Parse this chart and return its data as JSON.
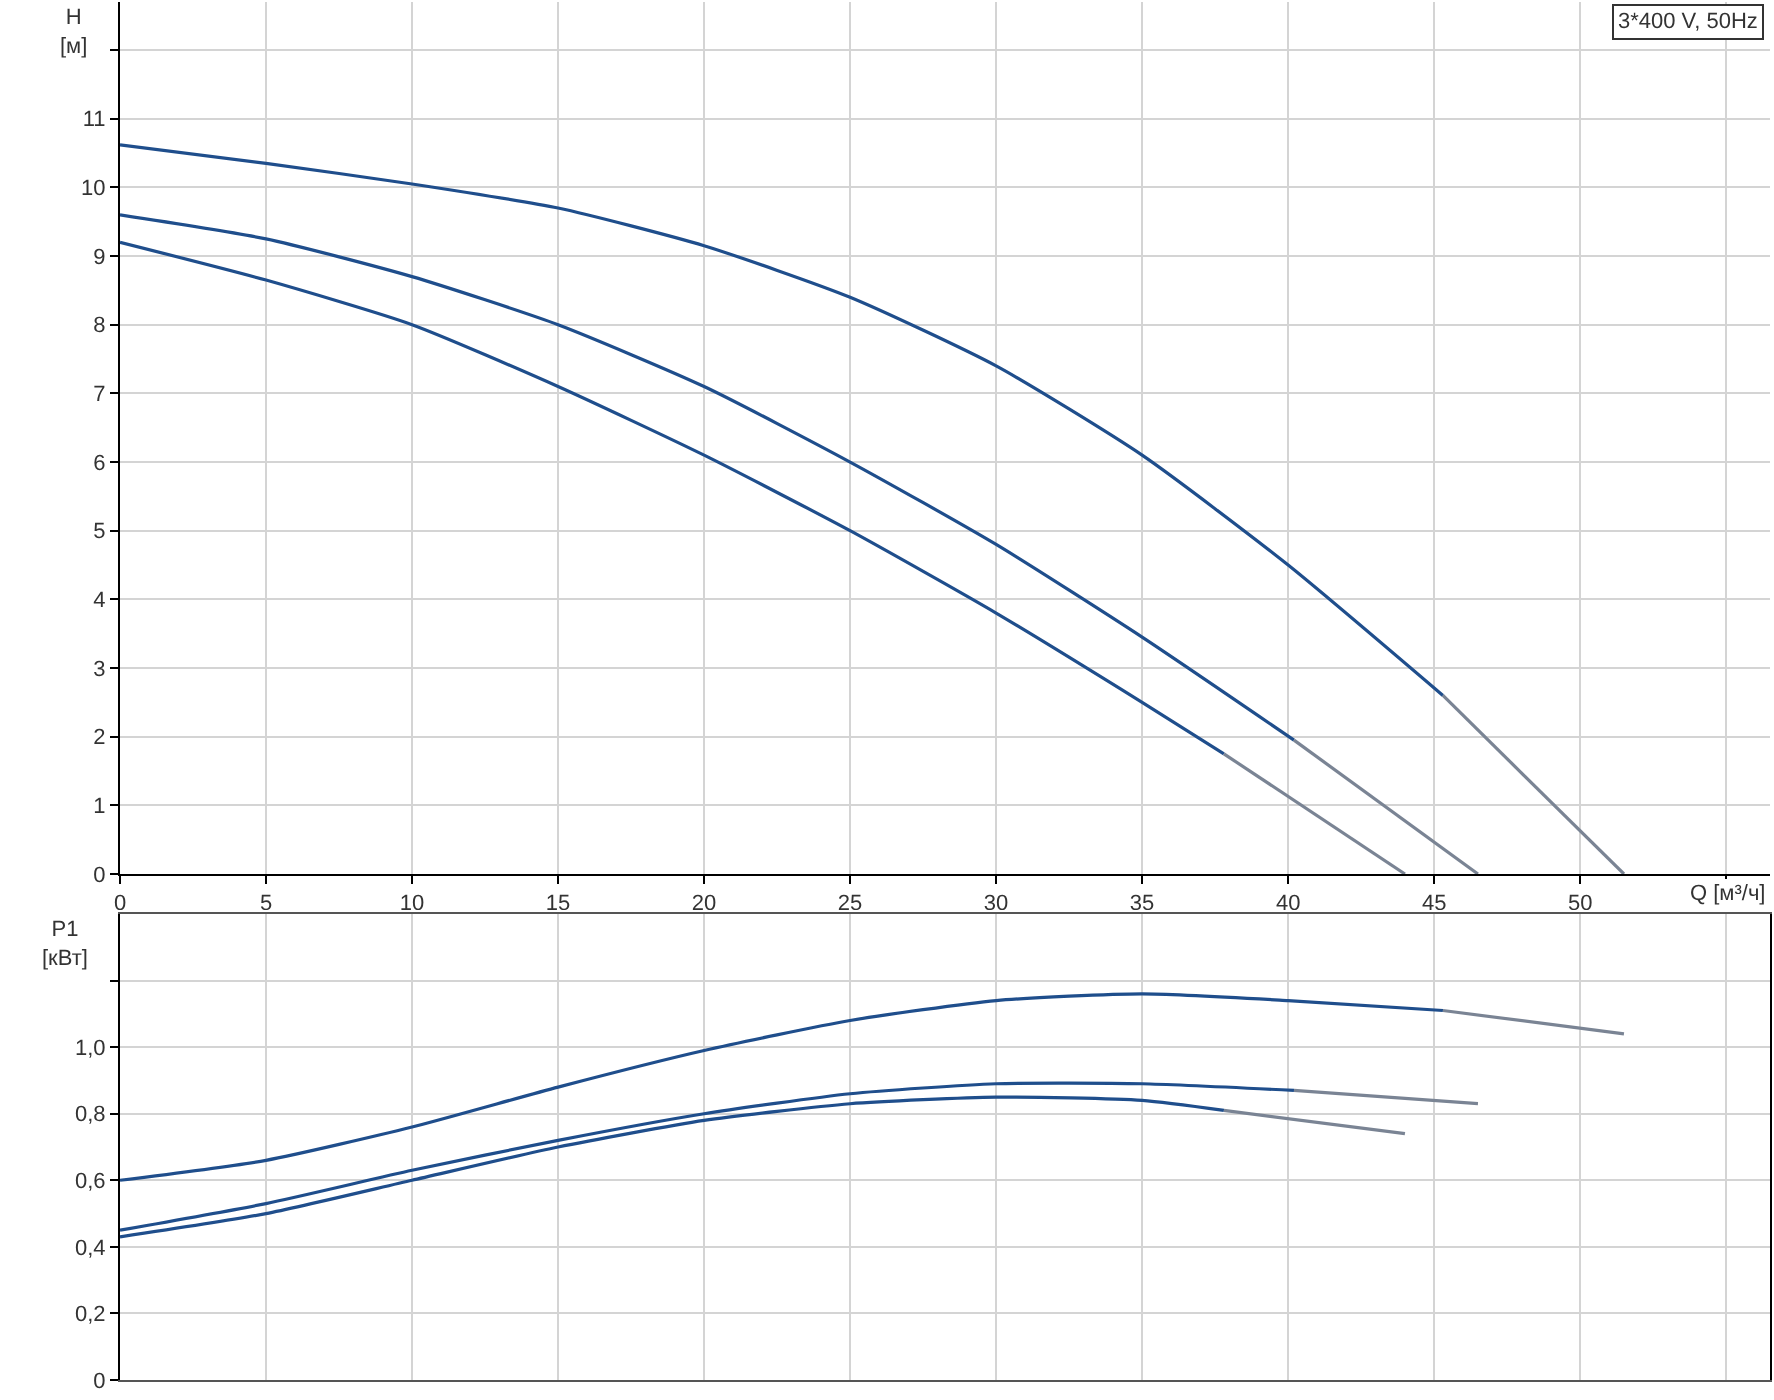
{
  "chart_data": [
    {
      "type": "line",
      "xlabel": "Q [м³/ч]",
      "ylabel": "H [м]",
      "annotations": [
        "3*400 V, 50Hz"
      ],
      "xlim": [
        0,
        56.5
      ],
      "xticks": [
        0,
        5,
        10,
        15,
        20,
        25,
        30,
        35,
        40,
        45,
        50,
        {
          "value": 55,
          "label": null
        }
      ],
      "ylim": [
        0,
        12.7
      ],
      "yticks": [
        0,
        1,
        2,
        3,
        4,
        5,
        6,
        7,
        8,
        9,
        10,
        11,
        {
          "value": 12,
          "label": null
        }
      ],
      "grid": true,
      "marker": "none",
      "line_style": "solid",
      "series": [
        {
          "color": "#1f4e8c",
          "x": [
            0,
            5,
            10,
            15,
            20,
            25,
            30,
            35,
            40,
            45.3
          ],
          "values": [
            10.62,
            10.35,
            10.05,
            9.7,
            9.15,
            8.4,
            7.4,
            6.1,
            4.5,
            2.6
          ]
        },
        {
          "color": "#7a8494",
          "x": [
            45.3,
            51.5
          ],
          "values": [
            2.6,
            0
          ]
        },
        {
          "color": "#1f4e8c",
          "x": [
            0,
            5,
            10,
            15,
            20,
            25,
            30,
            35,
            40.2
          ],
          "values": [
            9.6,
            9.25,
            8.7,
            8.0,
            7.1,
            6.0,
            4.8,
            3.45,
            1.95
          ]
        },
        {
          "color": "#7a8494",
          "x": [
            40.2,
            46.5
          ],
          "values": [
            1.95,
            0
          ]
        },
        {
          "color": "#1f4e8c",
          "x": [
            0,
            5,
            10,
            15,
            20,
            25,
            30,
            35,
            37.8
          ],
          "values": [
            9.2,
            8.65,
            8.0,
            7.1,
            6.1,
            5.0,
            3.8,
            2.5,
            1.75
          ]
        },
        {
          "color": "#7a8494",
          "x": [
            37.8,
            44
          ],
          "values": [
            1.75,
            0
          ]
        }
      ]
    },
    {
      "type": "line",
      "ylabel": "P1 [кВт]",
      "tick_labels": "y",
      "xlim": [
        0,
        56.5
      ],
      "xticks": [
        0,
        5,
        10,
        15,
        20,
        25,
        30,
        35,
        40,
        45,
        50,
        55
      ],
      "ylim": [
        0,
        1.4
      ],
      "yticks": [
        {
          "value": 0,
          "label": "0"
        },
        {
          "value": 0.2,
          "label": "0,2"
        },
        {
          "value": 0.4,
          "label": "0,4"
        },
        {
          "value": 0.6,
          "label": "0,6"
        },
        {
          "value": 0.8,
          "label": "0,8"
        },
        {
          "value": 1.0,
          "label": "1,0"
        },
        {
          "value": 1.2,
          "label": null
        }
      ],
      "grid": true,
      "marker": "none",
      "line_style": "solid",
      "series": [
        {
          "color": "#1f4e8c",
          "x": [
            0,
            5,
            10,
            15,
            20,
            25,
            30,
            35,
            40,
            45.3
          ],
          "values": [
            0.6,
            0.66,
            0.76,
            0.88,
            0.99,
            1.08,
            1.14,
            1.16,
            1.14,
            1.11
          ]
        },
        {
          "color": "#7a8494",
          "x": [
            45.3,
            51.5
          ],
          "values": [
            1.11,
            1.04
          ]
        },
        {
          "color": "#1f4e8c",
          "x": [
            0,
            5,
            10,
            15,
            20,
            25,
            30,
            35,
            40.2
          ],
          "values": [
            0.45,
            0.53,
            0.63,
            0.72,
            0.8,
            0.86,
            0.89,
            0.89,
            0.87
          ]
        },
        {
          "color": "#7a8494",
          "x": [
            40.2,
            46.5
          ],
          "values": [
            0.87,
            0.83
          ]
        },
        {
          "color": "#1f4e8c",
          "x": [
            0,
            5,
            10,
            15,
            20,
            25,
            30,
            35,
            37.8
          ],
          "values": [
            0.43,
            0.5,
            0.6,
            0.7,
            0.78,
            0.83,
            0.85,
            0.84,
            0.81
          ]
        },
        {
          "color": "#7a8494",
          "x": [
            37.8,
            44
          ],
          "values": [
            0.81,
            0.74
          ]
        }
      ]
    }
  ]
}
